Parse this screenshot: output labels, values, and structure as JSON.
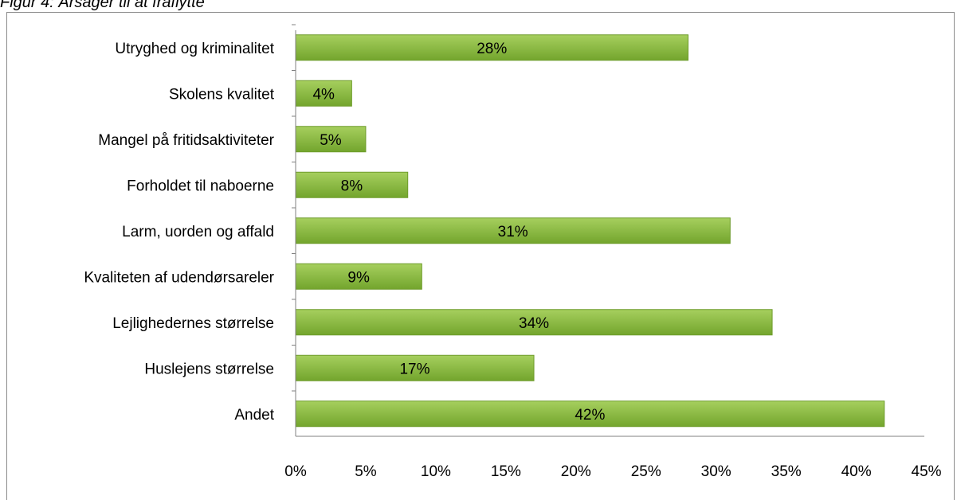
{
  "caption": "Figur 4: Årsager til at fraflytte",
  "colors": {
    "bar_top": "#a6cf5e",
    "bar_bottom": "#73a52d",
    "bar_stroke": "#6e9c2b",
    "axis": "#808080",
    "text": "#000000"
  },
  "chart_data": {
    "type": "bar",
    "orientation": "horizontal",
    "categories": [
      "Utryghed og kriminalitet",
      "Skolens kvalitet",
      "Mangel på fritidsaktiviteter",
      "Forholdet til naboerne",
      "Larm, uorden og affald",
      "Kvaliteten af udendørsareler",
      "Lejlighedernes størrelse",
      "Huslejens størrelse",
      "Andet"
    ],
    "values": [
      28,
      4,
      5,
      8,
      31,
      9,
      34,
      17,
      42
    ],
    "data_labels": [
      "28%",
      "4%",
      "5%",
      "8%",
      "31%",
      "9%",
      "34%",
      "17%",
      "42%"
    ],
    "xlim": [
      0,
      45
    ],
    "xticks": [
      0,
      5,
      10,
      15,
      20,
      25,
      30,
      35,
      40,
      45
    ],
    "xtick_labels": [
      "0%",
      "5%",
      "10%",
      "15%",
      "20%",
      "25%",
      "30%",
      "35%",
      "40%",
      "45%"
    ],
    "title": "",
    "xlabel": "",
    "ylabel": "",
    "grid": false,
    "legend": "none"
  }
}
